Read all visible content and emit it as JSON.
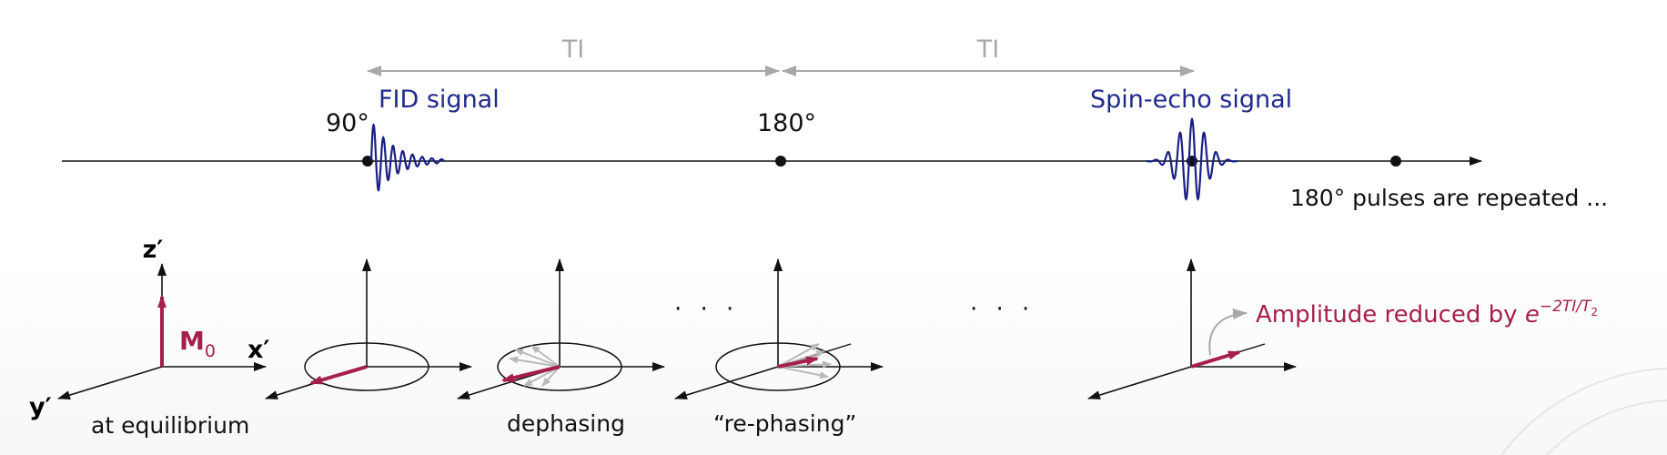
{
  "colors": {
    "axis": "#111111",
    "signal": "#1a1f86",
    "magnetization": "#a52048",
    "interval": "#a8a8a8",
    "spin_faint": "#b9b9b9"
  },
  "timeline": {
    "pulse_90": "90°",
    "pulse_180": "180°",
    "fid_label": "FID signal",
    "echo_label": "Spin-echo signal",
    "interval_1": "TI",
    "interval_2": "TI",
    "repeat_note": "180° pulses are repeated ..."
  },
  "frames": {
    "z_axis": "z′",
    "x_axis": "x′",
    "y_axis": "y′",
    "m0": "M",
    "m0_sub": "0",
    "equilibrium": "at equilibrium",
    "dephasing": "dephasing",
    "rephasing": "“re-phasing”",
    "ellipsis_1": "· · ·",
    "ellipsis_2": "· · ·",
    "amplitude_prefix": "Amplitude reduced by ",
    "amplitude_base": "e",
    "amplitude_exp": "−2TI/T",
    "amplitude_exp_sub": "2"
  }
}
